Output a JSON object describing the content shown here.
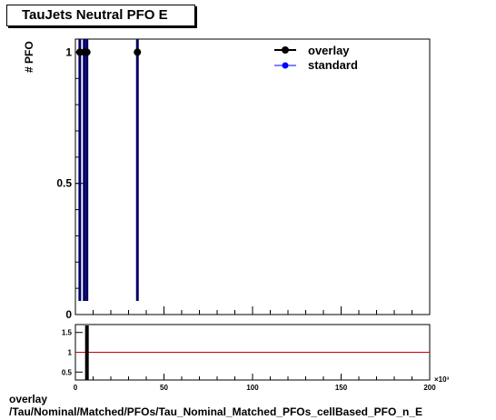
{
  "title": "TauJets Neutral PFO E",
  "footer": {
    "line1": "overlay",
    "line2": "/Tau/Nominal/Matched/PFOs/Tau_Nominal_Matched_PFOs_cellBased_PFO_n_E"
  },
  "colors": {
    "overlay": "#000000",
    "standard": "#0000ff",
    "ratio_line": "#cc0000",
    "bar": "#000066"
  },
  "chart_data": [
    {
      "type": "scatter",
      "ylabel": "# PFO",
      "xlabel": "",
      "xlim": [
        0,
        200
      ],
      "ylim": [
        0,
        1.05
      ],
      "x_multiplier": "×10³",
      "yticks": [
        0,
        0.5,
        1
      ],
      "ytick_labels": [
        "0",
        "0.5",
        "1"
      ],
      "legend": {
        "position": "top-right",
        "entries": [
          "overlay",
          "standard"
        ]
      },
      "series": [
        {
          "name": "overlay",
          "x": [
            2.5,
            5.0,
            6.5,
            35.0
          ],
          "y": [
            1,
            1,
            1,
            1
          ]
        },
        {
          "name": "standard",
          "x": [
            2.5,
            5.0,
            6.5,
            35.0
          ],
          "y": [
            1,
            1,
            1,
            1
          ]
        }
      ],
      "vertical_lines": [
        2.5,
        5.0,
        6.5,
        35.0
      ]
    },
    {
      "type": "line",
      "xlim": [
        0,
        200
      ],
      "ylim": [
        0.3,
        1.7
      ],
      "yticks": [
        0.5,
        1,
        1.5
      ],
      "ytick_labels": [
        "0.5",
        "1",
        "1.5"
      ],
      "xticks": [
        0,
        50,
        100,
        150,
        200
      ],
      "xtick_labels": [
        "0",
        "50",
        "100",
        "150",
        "200"
      ],
      "x_multiplier": "×10³",
      "reference_y": 1,
      "bar_x": 6.5
    }
  ]
}
